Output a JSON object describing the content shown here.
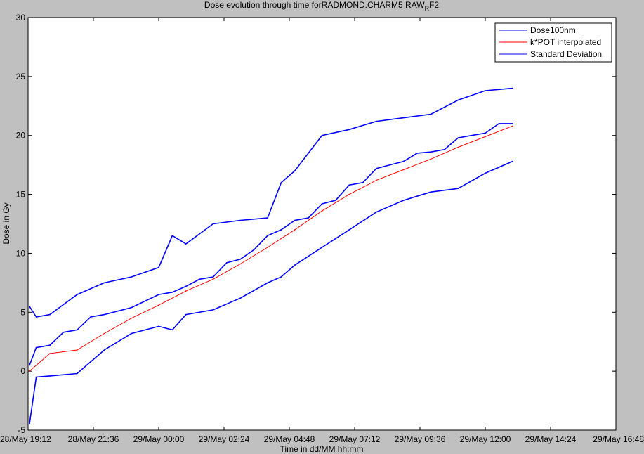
{
  "chart_data": {
    "type": "line",
    "title": "Dose evolution through time forRADMOND.CHARM5 RAW",
    "title_sub": "R",
    "title_suffix": "F2",
    "xlabel": "Time in dd/MM hh:mm",
    "ylabel": "Dose in Gy",
    "xlim": [
      "28/May 19:12",
      "29/May 16:48"
    ],
    "ylim": [
      -5,
      30
    ],
    "yticks": [
      -5,
      0,
      5,
      10,
      15,
      20,
      25,
      30
    ],
    "xtick_labels": [
      "28/May 19:12",
      "28/May 21:36",
      "29/May 00:00",
      "29/May 02:24",
      "29/May 04:48",
      "29/May 07:12",
      "29/May 09:36",
      "29/May 12:00",
      "29/May 14:24",
      "29/May 16:48"
    ],
    "grid": false,
    "legend_position": "top-right",
    "legend": [
      "Dose100nm",
      "k*POT interpolated",
      "Standard Deviation"
    ],
    "series": [
      {
        "name": "Dose100nm",
        "color": "#0000ff",
        "x": [
          "28/May 19:15",
          "28/May 19:30",
          "28/May 19:45",
          "28/May 20:00",
          "28/May 20:30",
          "28/May 21:00",
          "28/May 21:30",
          "28/May 22:00",
          "28/May 23:00",
          "29/May 00:00",
          "29/May 00:30",
          "29/May 01:00",
          "29/May 01:30",
          "29/May 02:00",
          "29/May 02:30",
          "29/May 03:00",
          "29/May 03:30",
          "29/May 04:00",
          "29/May 04:30",
          "29/May 05:00",
          "29/May 05:30",
          "29/May 06:00",
          "29/May 06:30",
          "29/May 07:00",
          "29/May 07:30",
          "29/May 08:00",
          "29/May 08:30",
          "29/May 09:00",
          "29/May 09:30",
          "29/May 10:00",
          "29/May 10:30",
          "29/May 11:00",
          "29/May 11:30",
          "29/May 12:00",
          "29/May 12:30",
          "29/May 13:00"
        ],
        "values": [
          0.5,
          2,
          2.1,
          2.2,
          3.3,
          3.5,
          4.6,
          4.8,
          5.4,
          6.5,
          6.7,
          7.2,
          7.8,
          8.0,
          9.2,
          9.5,
          10.3,
          11.5,
          12.0,
          12.8,
          13.0,
          14.2,
          14.5,
          15.8,
          16.0,
          17.2,
          17.5,
          17.8,
          18.5,
          18.6,
          18.8,
          19.8,
          20.0,
          20.2,
          21.0,
          21.0
        ]
      },
      {
        "name": "k*POT interpolated",
        "color": "#ff0000",
        "x": [
          "28/May 19:15",
          "28/May 20:00",
          "28/May 21:00",
          "28/May 22:00",
          "28/May 23:00",
          "29/May 00:00",
          "29/May 01:00",
          "29/May 02:00",
          "29/May 03:00",
          "29/May 04:00",
          "29/May 05:00",
          "29/May 06:00",
          "29/May 07:00",
          "29/May 08:00",
          "29/May 09:00",
          "29/May 10:00",
          "29/May 11:00",
          "29/May 12:00",
          "29/May 13:00"
        ],
        "values": [
          0,
          1.5,
          1.8,
          3.2,
          4.5,
          5.6,
          6.8,
          7.8,
          9.1,
          10.5,
          12.0,
          13.6,
          15.0,
          16.2,
          17.1,
          18.0,
          19.0,
          19.9,
          20.8
        ]
      },
      {
        "name": "Standard Deviation (upper)",
        "color": "#0000ff",
        "x": [
          "28/May 19:15",
          "28/May 19:30",
          "28/May 20:00",
          "28/May 21:00",
          "28/May 22:00",
          "28/May 23:00",
          "29/May 00:00",
          "29/May 00:30",
          "29/May 01:00",
          "29/May 02:00",
          "29/May 03:00",
          "29/May 04:00",
          "29/May 04:30",
          "29/May 05:00",
          "29/May 06:00",
          "29/May 07:00",
          "29/May 08:00",
          "29/May 09:00",
          "29/May 10:00",
          "29/May 11:00",
          "29/May 12:00",
          "29/May 13:00"
        ],
        "values": [
          5.5,
          4.6,
          4.8,
          6.5,
          7.5,
          8.0,
          8.8,
          11.5,
          10.8,
          12.5,
          12.8,
          13.0,
          16.0,
          17.0,
          20.0,
          20.5,
          21.2,
          21.5,
          21.8,
          23.0,
          23.8,
          24.0
        ]
      },
      {
        "name": "Standard Deviation (lower)",
        "color": "#0000ff",
        "x": [
          "28/May 19:15",
          "28/May 19:30",
          "28/May 20:00",
          "28/May 21:00",
          "28/May 22:00",
          "28/May 23:00",
          "29/May 00:00",
          "29/May 00:30",
          "29/May 01:00",
          "29/May 02:00",
          "29/May 03:00",
          "29/May 04:00",
          "29/May 04:30",
          "29/May 05:00",
          "29/May 06:00",
          "29/May 07:00",
          "29/May 08:00",
          "29/May 09:00",
          "29/May 10:00",
          "29/May 11:00",
          "29/May 12:00",
          "29/May 13:00"
        ],
        "values": [
          -4.5,
          -0.5,
          -0.4,
          -0.2,
          1.8,
          3.2,
          3.8,
          3.5,
          4.8,
          5.2,
          6.2,
          7.5,
          8.0,
          9.0,
          10.5,
          12.0,
          13.5,
          14.5,
          15.2,
          15.5,
          16.8,
          17.8
        ]
      }
    ]
  }
}
